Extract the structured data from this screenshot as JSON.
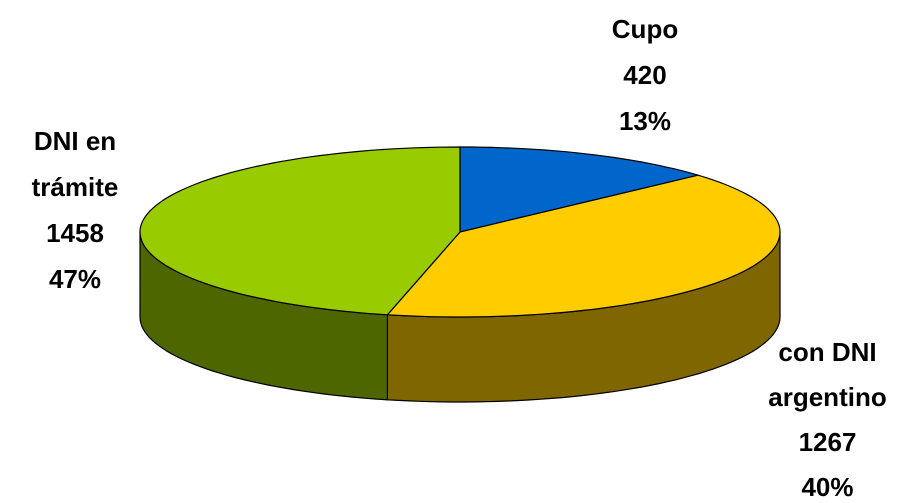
{
  "chart_data": {
    "type": "pie3d",
    "categories": [
      "Cupo",
      "con DNI argentino",
      "DNI en trámite"
    ],
    "values": [
      420,
      1267,
      1458
    ],
    "percent_labels": [
      "13%",
      "40%",
      "47%"
    ],
    "colors": [
      "#0066cc",
      "#ffcc00",
      "#99cc00"
    ],
    "side_colors": [
      "#003a75",
      "#806600",
      "#4d6600"
    ]
  }
}
